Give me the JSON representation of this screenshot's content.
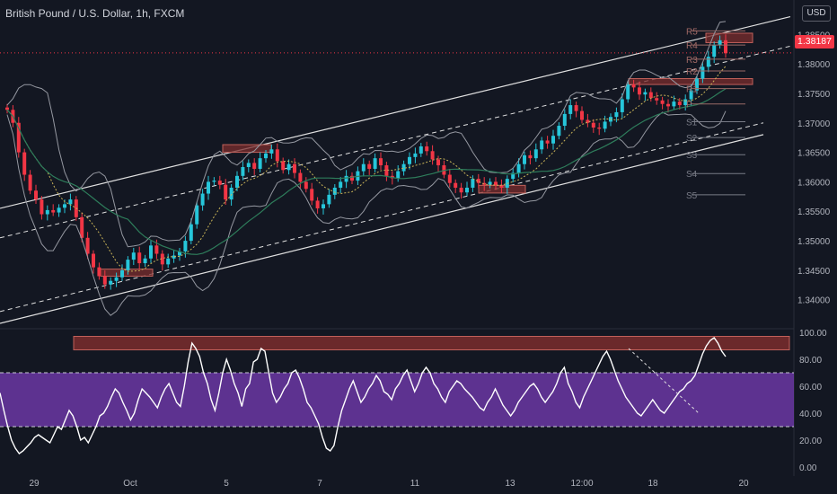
{
  "header": {
    "symbol_title": "British Pound / U.S. Dollar, 1h, FXCM",
    "currency": "USD",
    "last_price_label": "1.38187"
  },
  "colors": {
    "background": "#131722",
    "up": "#26c6da",
    "down": "#f23645",
    "channel": "#e0e0e0",
    "bollinger": "#9598a1",
    "ma_green": "#2e7d5b",
    "ma_yellow": "#c9b458",
    "zone_fill": "#7b2d2d",
    "rsi_line": "#ffffff",
    "rsi_band": "#7e3fbf"
  },
  "chart_data": [
    {
      "type": "candlestick",
      "title": "British Pound / U.S. Dollar, 1h, FXCM",
      "x_tick_labels": [
        "29",
        "Oct",
        "5",
        "7",
        "11",
        "13",
        "12:00",
        "18",
        "20"
      ],
      "y_tick_labels": [
        "1.38500",
        "1.38000",
        "1.37500",
        "1.37000",
        "1.36500",
        "1.36000",
        "1.35500",
        "1.35000",
        "1.34500",
        "1.34000"
      ],
      "ylim": [
        1.336,
        1.389
      ],
      "last_price": 1.38187,
      "pivot_labels": [
        "R5",
        "R4",
        "R3",
        "R2",
        "R1",
        "P",
        "S1",
        "S2",
        "S3",
        "S4",
        "S5"
      ],
      "pivot_levels": [
        1.3856,
        1.3832,
        1.3808,
        1.3788,
        1.3758,
        1.3732,
        1.3702,
        1.3675,
        1.3646,
        1.3614,
        1.3578
      ],
      "closes": [
        1.3722,
        1.37,
        1.365,
        1.3612,
        1.3585,
        1.357,
        1.3545,
        1.3552,
        1.3548,
        1.3556,
        1.3562,
        1.357,
        1.354,
        1.3505,
        1.3478,
        1.3455,
        1.344,
        1.3426,
        1.3432,
        1.3438,
        1.345,
        1.3468,
        1.348,
        1.3462,
        1.347,
        1.3492,
        1.3478,
        1.346,
        1.347,
        1.3475,
        1.3482,
        1.35,
        1.3528,
        1.356,
        1.358,
        1.36,
        1.3602,
        1.3595,
        1.357,
        1.359,
        1.361,
        1.3625,
        1.3632,
        1.3622,
        1.364,
        1.3648,
        1.3655,
        1.3635,
        1.362,
        1.363,
        1.3615,
        1.36,
        1.3588,
        1.3568,
        1.3555,
        1.3562,
        1.3578,
        1.359,
        1.36,
        1.361,
        1.3602,
        1.3618,
        1.363,
        1.3622,
        1.364,
        1.3628,
        1.361,
        1.3606,
        1.3618,
        1.363,
        1.3642,
        1.3648,
        1.366,
        1.3652,
        1.3638,
        1.3628,
        1.3612,
        1.3598,
        1.359,
        1.3582,
        1.359,
        1.3605,
        1.3598,
        1.3595,
        1.36,
        1.3594,
        1.359,
        1.3605,
        1.3615,
        1.363,
        1.3645,
        1.364,
        1.3655,
        1.367,
        1.3665,
        1.3678,
        1.3695,
        1.3715,
        1.373,
        1.372,
        1.3705,
        1.37,
        1.3692,
        1.369,
        1.3702,
        1.371,
        1.3718,
        1.374,
        1.3765,
        1.376,
        1.3748,
        1.3752,
        1.3742,
        1.3738,
        1.3732,
        1.3728,
        1.3736,
        1.373,
        1.374,
        1.3755,
        1.3775,
        1.3795,
        1.3812,
        1.3832,
        1.384,
        1.3818
      ]
    },
    {
      "type": "line",
      "title": "RSI",
      "y_tick_labels": [
        "100.00",
        "80.00",
        "60.00",
        "40.00",
        "20.00",
        "0.00"
      ],
      "ylim": [
        0,
        100
      ],
      "upper_band": 70,
      "lower_band": 30,
      "values": [
        55,
        42,
        30,
        20,
        14,
        10,
        12,
        15,
        18,
        22,
        24,
        22,
        20,
        18,
        24,
        30,
        28,
        35,
        42,
        38,
        30,
        20,
        22,
        18,
        24,
        30,
        38,
        40,
        45,
        52,
        58,
        55,
        48,
        42,
        35,
        40,
        50,
        58,
        55,
        52,
        48,
        44,
        52,
        58,
        62,
        55,
        48,
        45,
        60,
        78,
        92,
        88,
        82,
        70,
        62,
        50,
        42,
        55,
        70,
        80,
        72,
        62,
        55,
        45,
        58,
        62,
        78,
        80,
        88,
        86,
        70,
        55,
        48,
        52,
        58,
        62,
        70,
        72,
        66,
        58,
        48,
        44,
        38,
        32,
        22,
        14,
        12,
        16,
        30,
        42,
        50,
        58,
        64,
        56,
        48,
        52,
        58,
        62,
        68,
        64,
        56,
        54,
        50,
        58,
        62,
        68,
        72,
        64,
        56,
        62,
        70,
        74,
        70,
        62,
        58,
        52,
        48,
        56,
        60,
        64,
        62,
        58,
        55,
        52,
        48,
        44,
        42,
        48,
        52,
        58,
        52,
        46,
        42,
        38,
        42,
        48,
        52,
        56,
        60,
        62,
        58,
        52,
        48,
        52,
        56,
        62,
        70,
        74,
        62,
        56,
        48,
        44,
        52,
        58,
        64,
        70,
        76,
        82,
        86,
        80,
        72,
        64,
        58,
        52,
        48,
        44,
        40,
        38,
        42,
        46,
        50,
        46,
        42,
        40,
        44,
        48,
        52,
        56,
        58,
        62,
        64,
        68,
        76,
        84,
        90,
        94,
        96,
        92,
        86,
        82
      ]
    }
  ]
}
